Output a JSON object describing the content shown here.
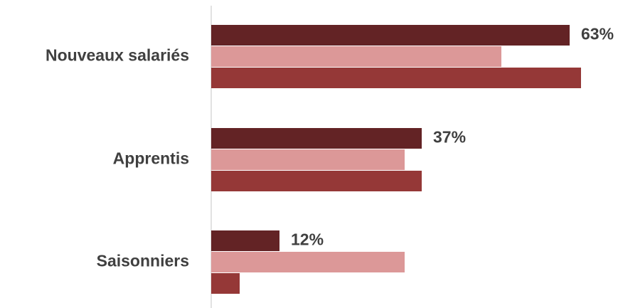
{
  "chart_data": {
    "type": "bar",
    "orientation": "horizontal",
    "categories": [
      "Nouveaux salariés",
      "Apprentis",
      "Saisonniers"
    ],
    "series": [
      {
        "values": [
          63,
          37,
          12
        ],
        "color": "#632325",
        "show_labels": true
      },
      {
        "values": [
          51,
          34,
          34
        ],
        "color": "#dc9898",
        "show_labels": false
      },
      {
        "values": [
          65,
          37,
          5
        ],
        "color": "#953837",
        "show_labels": false
      }
    ],
    "data_labels": [
      "63%",
      "37%",
      "12%"
    ],
    "xlim": [
      0,
      65
    ],
    "grid": false,
    "legend": "none",
    "title": "",
    "xlabel": "",
    "ylabel": ""
  }
}
